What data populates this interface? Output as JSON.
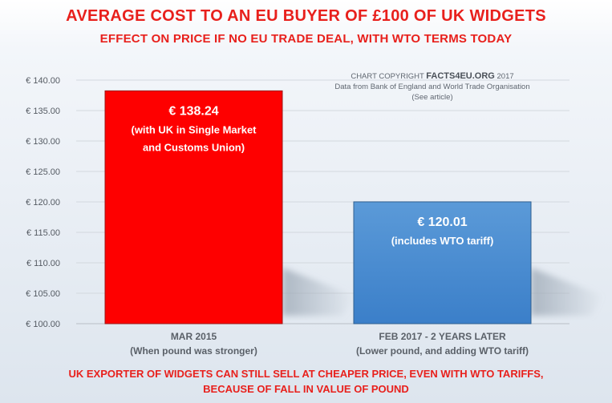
{
  "chart_data": {
    "type": "bar",
    "title": "AVERAGE COST TO AN EU BUYER OF £100 OF UK WIDGETS",
    "subtitle": "EFFECT ON PRICE IF NO EU TRADE DEAL, WITH WTO TERMS TODAY",
    "ylim": [
      100,
      140
    ],
    "yticks": [
      "€ 100.00",
      "€ 105.00",
      "€ 110.00",
      "€ 115.00",
      "€ 120.00",
      "€ 125.00",
      "€ 130.00",
      "€ 135.00",
      "€ 140.00"
    ],
    "grid": true,
    "categories": [
      {
        "line1": "MAR 2015",
        "line2": "(When pound was stronger)"
      },
      {
        "line1": "FEB 2017 - 2 YEARS LATER",
        "line2": "(Lower pound, and adding WTO tariff)"
      }
    ],
    "values": [
      138.24,
      120.01
    ],
    "colors": [
      "#fe0000",
      "#4a8ed2"
    ],
    "data_labels": [
      {
        "value": "€ 138.24",
        "lines": [
          "(with UK in Single Market",
          "and Customs Union)"
        ]
      },
      {
        "value": "€ 120.01",
        "lines": [
          "(includes WTO tariff)"
        ]
      }
    ],
    "copyright": {
      "prefix": "CHART COPYRIGHT ",
      "brand": "FACTS4EU.ORG",
      "year": " 2017",
      "source": "Data from Bank of England and World Trade Organisation",
      "note": "(See article)"
    }
  },
  "footer": {
    "line1": "UK EXPORTER OF WIDGETS CAN STILL SELL AT CHEAPER PRICE, EVEN WITH WTO TARIFFS,",
    "line2": "BECAUSE OF FALL IN VALUE OF POUND"
  }
}
